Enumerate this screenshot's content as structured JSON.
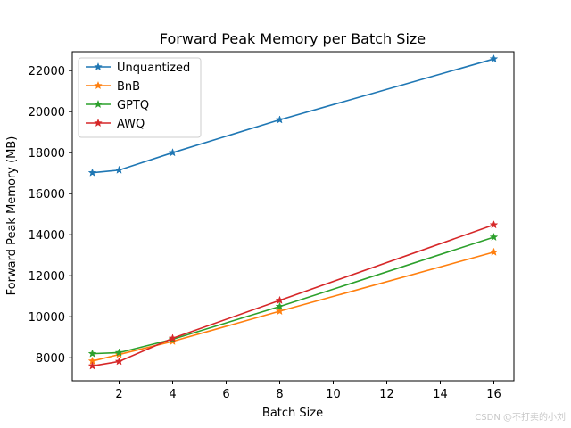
{
  "chart_data": {
    "type": "line",
    "title": "Forward Peak Memory per Batch Size",
    "xlabel": "Batch Size",
    "ylabel": "Forward Peak Memory (MB)",
    "xlim": [
      0.25,
      16.75
    ],
    "ylim": [
      6880,
      22920
    ],
    "xticks": [
      2,
      4,
      6,
      8,
      10,
      12,
      14,
      16
    ],
    "yticks": [
      8000,
      10000,
      12000,
      14000,
      16000,
      18000,
      20000,
      22000
    ],
    "grid": false,
    "legend_position": "top-left",
    "marker": "star",
    "x": [
      1,
      2,
      4,
      8,
      16
    ],
    "series": [
      {
        "name": "Unquantized",
        "color": "#1f77b4",
        "values": [
          17020,
          17150,
          18000,
          19600,
          22570
        ]
      },
      {
        "name": "BnB",
        "color": "#ff7f0e",
        "values": [
          7840,
          8160,
          8800,
          10270,
          13150
        ]
      },
      {
        "name": "GPTQ",
        "color": "#2ca02c",
        "values": [
          8200,
          8250,
          8900,
          10500,
          13880
        ]
      },
      {
        "name": "AWQ",
        "color": "#d62728",
        "values": [
          7600,
          7820,
          8950,
          10800,
          14480
        ]
      }
    ]
  },
  "watermark": "CSDN @不打卖的小刘"
}
